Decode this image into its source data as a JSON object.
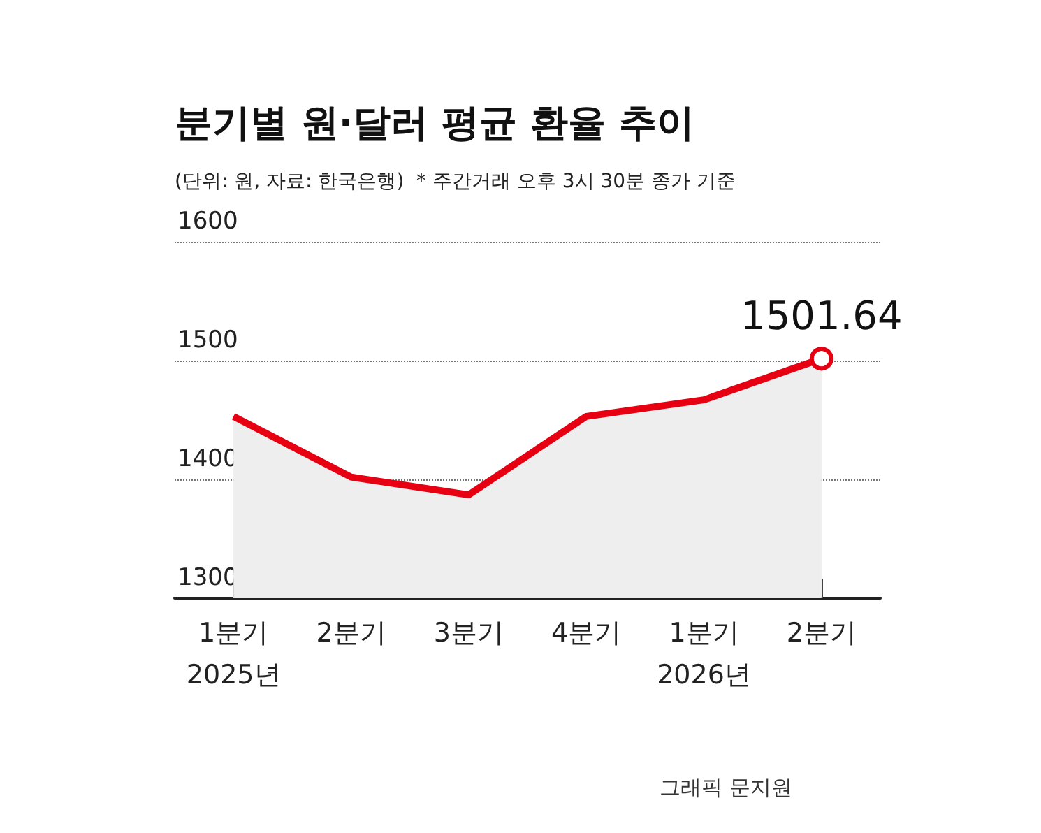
{
  "chart_data": {
    "type": "area",
    "title": "분기별 원·달러 평균 환율 추이",
    "subtitle": "(단위: 원, 자료: 한국은행)  * 주간거래 오후 3시 30분 종가 기준",
    "categories": [
      "1분기\n2025년",
      "2분기",
      "3분기",
      "4분기",
      "1분기\n2026년",
      "2분기"
    ],
    "series": [
      {
        "color": "#e60012",
        "values": [
          1453,
          1402,
          1387,
          1453,
          1467,
          1501.64
        ],
        "value_labels": [
          null,
          null,
          null,
          null,
          null,
          "1501.64"
        ]
      }
    ],
    "ylim": [
      1300,
      1600
    ],
    "yticks": [
      1300,
      1400,
      1500,
      1600
    ],
    "grid": "y",
    "line_style": "solid",
    "annotations": [
      "그래픽 문지원"
    ]
  }
}
